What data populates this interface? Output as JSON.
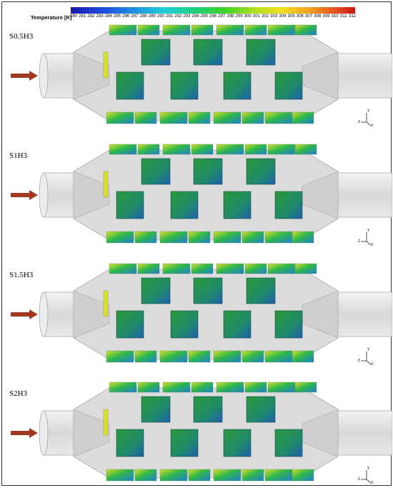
{
  "legend": {
    "title": "Temperature [K]",
    "ticks": [
      "280",
      "281",
      "282",
      "283",
      "284",
      "285",
      "286",
      "287",
      "288",
      "289",
      "290",
      "291",
      "292",
      "293",
      "294",
      "295",
      "296",
      "297",
      "298",
      "299",
      "300",
      "301",
      "302",
      "303",
      "304",
      "305",
      "306",
      "307",
      "308",
      "309",
      "310",
      "311",
      "312"
    ]
  },
  "panels": [
    {
      "label": "S0.5H3"
    },
    {
      "label": "S1H3"
    },
    {
      "label": "S1.5H3"
    },
    {
      "label": "S2H3"
    }
  ],
  "axis": {
    "y": "Y",
    "z": "Z",
    "x": "X"
  },
  "colors": {
    "shell": "#dcdcdc",
    "shell_edge": "#a8a8a8",
    "arrow": "#a0391f",
    "fin_green": "#2fb84a",
    "fin_blue": "#1f7fd0",
    "fin_yellow": "#d8e028"
  }
}
